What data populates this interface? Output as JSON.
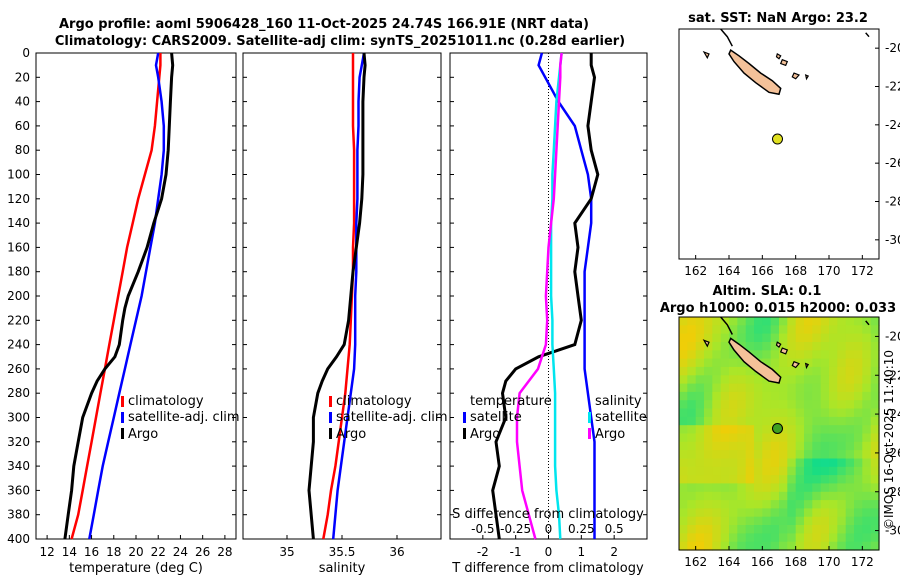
{
  "header": {
    "title_line1": "Argo profile: aoml 5906428_160 11-Oct-2025 24.74S 166.91E (NRT data)",
    "title_line2": "Climatology: CARS2009. Satellite-adj clim: synTS_20251011.nc (0.28d earlier)"
  },
  "colors": {
    "climatology": "#ff0000",
    "satellite": "#0000ff",
    "argo": "#000000",
    "salinity_satellite": "#00e5ee",
    "salinity_argo": "#ff00ff",
    "land": "#f4c199"
  },
  "chart_data": [
    {
      "type": "line",
      "name": "temperature-profile",
      "xlabel": "temperature (deg C)",
      "ylabel": "",
      "xlim": [
        11,
        29
      ],
      "ylim": [
        400,
        0
      ],
      "xticks": [
        "12",
        "14",
        "16",
        "18",
        "20",
        "22",
        "24",
        "26",
        "28"
      ],
      "yticks": [
        "0",
        "20",
        "40",
        "60",
        "80",
        "100",
        "120",
        "140",
        "160",
        "180",
        "200",
        "220",
        "240",
        "260",
        "280",
        "300",
        "320",
        "340",
        "360",
        "380",
        "400"
      ],
      "legend": [
        "climatology",
        "satellite-adj. clim",
        "Argo"
      ],
      "series": [
        {
          "name": "climatology",
          "depth": [
            0,
            10,
            20,
            40,
            60,
            80,
            100,
            120,
            140,
            160,
            180,
            200,
            220,
            240,
            260,
            280,
            300,
            320,
            340,
            360,
            380,
            400
          ],
          "values": [
            22.2,
            22.2,
            22.1,
            21.9,
            21.7,
            21.4,
            20.8,
            20.2,
            19.7,
            19.2,
            18.8,
            18.4,
            18.0,
            17.6,
            17.2,
            16.8,
            16.4,
            16.0,
            15.6,
            15.2,
            14.8,
            14.2
          ]
        },
        {
          "name": "satellite-adj. clim",
          "depth": [
            0,
            10,
            20,
            40,
            60,
            80,
            100,
            120,
            140,
            160,
            180,
            200,
            220,
            240,
            260,
            280,
            300,
            320,
            340,
            360,
            380,
            400
          ],
          "values": [
            22.0,
            21.8,
            22.0,
            22.3,
            22.5,
            22.5,
            22.3,
            22.0,
            21.7,
            21.3,
            20.9,
            20.5,
            20.0,
            19.5,
            19.0,
            18.5,
            18.0,
            17.5,
            17.0,
            16.6,
            16.2,
            15.8
          ]
        },
        {
          "name": "Argo",
          "depth": [
            0,
            10,
            20,
            40,
            60,
            80,
            100,
            120,
            140,
            160,
            180,
            200,
            210,
            220,
            240,
            250,
            260,
            270,
            280,
            300,
            320,
            340,
            360,
            380,
            400
          ],
          "values": [
            23.2,
            23.3,
            23.2,
            23.1,
            23.0,
            22.9,
            22.7,
            22.3,
            21.6,
            21.0,
            20.2,
            19.3,
            19.0,
            18.8,
            18.5,
            18.1,
            17.2,
            16.5,
            16.0,
            15.2,
            14.8,
            14.4,
            14.2,
            13.9,
            13.6
          ]
        }
      ]
    },
    {
      "type": "line",
      "name": "salinity-profile",
      "xlabel": "salinity",
      "ylabel": "",
      "xlim": [
        34.6,
        36.4
      ],
      "ylim": [
        400,
        0
      ],
      "xticks": [
        "35",
        "35.5",
        "36"
      ],
      "legend": [
        "climatology",
        "satellite-adj. clim",
        "Argo"
      ],
      "series": [
        {
          "name": "climatology",
          "depth": [
            0,
            20,
            40,
            60,
            80,
            100,
            120,
            140,
            160,
            180,
            200,
            220,
            240,
            260,
            280,
            300,
            320,
            340,
            360,
            380,
            400
          ],
          "values": [
            35.6,
            35.6,
            35.6,
            35.6,
            35.61,
            35.61,
            35.61,
            35.61,
            35.6,
            35.6,
            35.59,
            35.58,
            35.57,
            35.55,
            35.53,
            35.5,
            35.47,
            35.44,
            35.4,
            35.37,
            35.33
          ]
        },
        {
          "name": "satellite-adj. clim",
          "depth": [
            0,
            10,
            20,
            40,
            60,
            80,
            100,
            120,
            140,
            160,
            180,
            200,
            220,
            240,
            260,
            280,
            300,
            320,
            340,
            360,
            380,
            400
          ],
          "values": [
            35.7,
            35.68,
            35.66,
            35.65,
            35.65,
            35.64,
            35.64,
            35.64,
            35.63,
            35.63,
            35.63,
            35.62,
            35.62,
            35.62,
            35.61,
            35.58,
            35.55,
            35.52,
            35.49,
            35.46,
            35.44,
            35.42
          ]
        },
        {
          "name": "Argo",
          "depth": [
            0,
            10,
            20,
            40,
            60,
            80,
            100,
            120,
            140,
            160,
            180,
            200,
            220,
            240,
            250,
            260,
            270,
            280,
            300,
            320,
            340,
            360,
            380,
            400
          ],
          "values": [
            35.7,
            35.71,
            35.7,
            35.69,
            35.69,
            35.69,
            35.69,
            35.68,
            35.66,
            35.63,
            35.6,
            35.58,
            35.56,
            35.52,
            35.45,
            35.37,
            35.32,
            35.28,
            35.24,
            35.24,
            35.22,
            35.2,
            35.22,
            35.24
          ]
        }
      ]
    },
    {
      "type": "line",
      "name": "difference-profile",
      "xlabel": "T difference from climatology",
      "xlabel_top": "S difference from climatology",
      "xlim": [
        -3,
        3
      ],
      "ylim": [
        400,
        0
      ],
      "xticks": [
        "-2",
        "-1",
        "0",
        "1",
        "2"
      ],
      "top_xticks": [
        "-0.5",
        "-0.25",
        "0",
        "0.25",
        "0.5"
      ],
      "legend_temperature_title": "temperature",
      "legend_salinity_title": "salinity",
      "legend_temperature": [
        "satellite",
        "Argo"
      ],
      "legend_salinity": [
        "satellite",
        "Argo"
      ],
      "series": [
        {
          "name": "T satellite",
          "depth": [
            0,
            10,
            20,
            40,
            60,
            80,
            100,
            120,
            140,
            160,
            180,
            200,
            220,
            240,
            260,
            280,
            300,
            320,
            340,
            360,
            380,
            400
          ],
          "values": [
            -0.2,
            -0.3,
            -0.1,
            0.3,
            0.8,
            1.0,
            1.2,
            1.3,
            1.3,
            1.2,
            1.1,
            1.1,
            1.1,
            1.1,
            1.1,
            1.2,
            1.3,
            1.4,
            1.4,
            1.4,
            1.4,
            1.4
          ]
        },
        {
          "name": "T Argo",
          "depth": [
            0,
            10,
            20,
            40,
            60,
            80,
            100,
            120,
            140,
            160,
            180,
            200,
            220,
            240,
            250,
            260,
            270,
            280,
            300,
            320,
            340,
            360,
            380,
            400
          ],
          "values": [
            1.3,
            1.3,
            1.4,
            1.3,
            1.2,
            1.3,
            1.5,
            1.3,
            0.8,
            0.9,
            0.8,
            0.9,
            1.0,
            0.8,
            -0.3,
            -1.0,
            -1.3,
            -1.4,
            -1.3,
            -1.6,
            -1.5,
            -1.7,
            -1.6,
            -1.5
          ]
        },
        {
          "name": "S satellite",
          "depth": [
            0,
            20,
            40,
            60,
            80,
            100,
            120,
            140,
            160,
            180,
            200,
            220,
            240,
            260,
            280,
            300,
            320,
            340,
            360,
            380,
            400
          ],
          "values": [
            0.1,
            0.08,
            0.06,
            0.05,
            0.04,
            0.03,
            0.03,
            0.02,
            0.02,
            0.02,
            0.02,
            0.03,
            0.03,
            0.04,
            0.05,
            0.05,
            0.05,
            0.05,
            0.06,
            0.08,
            0.09
          ]
        },
        {
          "name": "S Argo",
          "depth": [
            0,
            10,
            20,
            40,
            60,
            80,
            100,
            120,
            140,
            160,
            180,
            200,
            220,
            240,
            250,
            260,
            280,
            300,
            320,
            340,
            360,
            380,
            400
          ],
          "values": [
            0.1,
            0.09,
            0.09,
            0.08,
            0.07,
            0.06,
            0.05,
            0.04,
            0.02,
            0.0,
            -0.01,
            -0.02,
            -0.01,
            -0.02,
            -0.05,
            -0.08,
            -0.22,
            -0.24,
            -0.24,
            -0.22,
            -0.2,
            -0.15,
            -0.1
          ]
        }
      ]
    },
    {
      "type": "map",
      "name": "sst-map",
      "title": "sat. SST: NaN Argo: 23.2",
      "xlim": [
        161,
        173
      ],
      "ylim": [
        -31,
        -19
      ],
      "xticks": [
        "162",
        "164",
        "166",
        "168",
        "170",
        "172"
      ],
      "yticks": [
        "-20",
        "-22",
        "-24",
        "-26",
        "-28",
        "-30"
      ],
      "float_position": [
        166.91,
        -24.74
      ]
    },
    {
      "type": "heatmap",
      "name": "sla-map",
      "title_line1": "Altim. SLA: 0.1",
      "title_line2": "Argo h1000: 0.015 h2000: 0.033",
      "xlim": [
        161,
        173
      ],
      "ylim": [
        -31,
        -19
      ],
      "xticks": [
        "162",
        "164",
        "166",
        "168",
        "170",
        "172"
      ],
      "yticks": [
        "-20",
        "-22",
        "-24",
        "-26",
        "-28",
        "-30"
      ],
      "float_position": [
        166.91,
        -24.74
      ]
    }
  ],
  "footer": {
    "stamp": "©IMOS 16-Oct-2025 11:40:10"
  }
}
